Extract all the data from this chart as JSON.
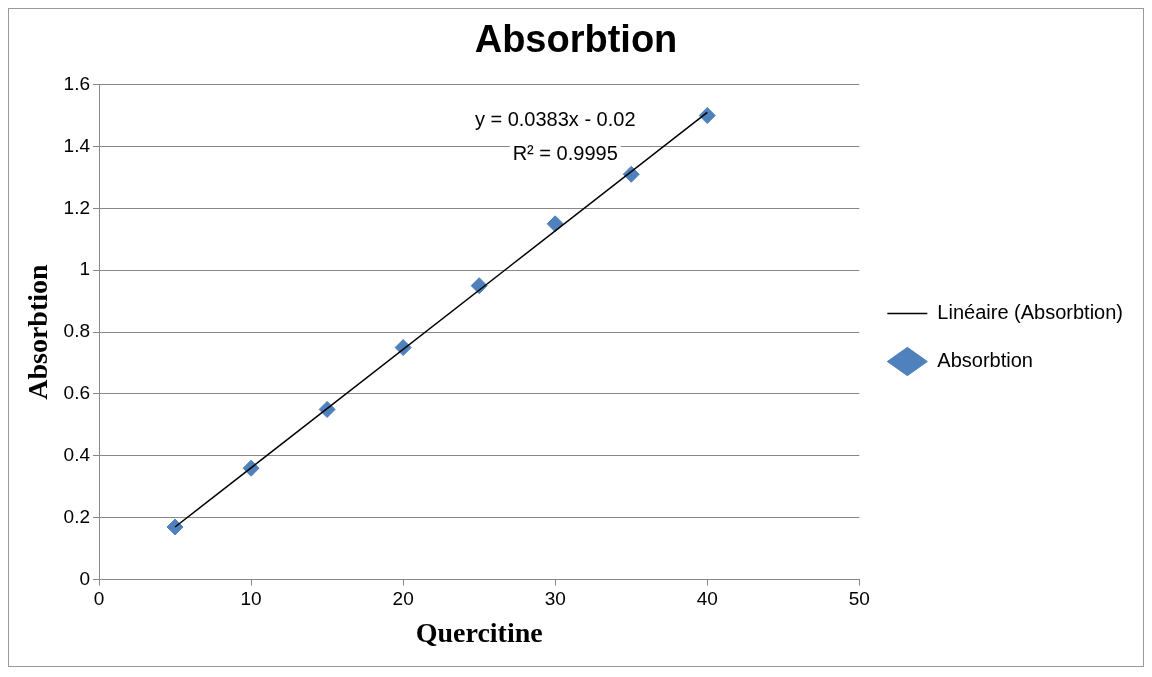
{
  "chart_data": {
    "type": "scatter",
    "title": "Absorbtion",
    "xlabel": "Quercitine",
    "ylabel": "Absorbtion",
    "x": [
      5,
      10,
      15,
      20,
      25,
      30,
      35,
      40
    ],
    "series": [
      {
        "name": "Absorbtion",
        "type": "scatter",
        "color": "#4f81bd",
        "marker": "diamond",
        "values": [
          0.17,
          0.36,
          0.55,
          0.75,
          0.95,
          1.15,
          1.31,
          1.5
        ]
      },
      {
        "name": "Linéaire (Absorbtion)",
        "type": "line",
        "color": "#000000",
        "x": [
          5,
          40
        ],
        "values": [
          0.17,
          1.51
        ],
        "line_style": "solid",
        "marker": "none"
      }
    ],
    "annotations": [
      "y = 0.0383x - 0.02",
      "R² = 0.9995"
    ],
    "xlim": [
      0,
      50
    ],
    "xticks": [
      0,
      10,
      20,
      30,
      40,
      50
    ],
    "ylim": [
      0,
      1.6
    ],
    "yticks": [
      0,
      0.2,
      0.4,
      0.6,
      0.8,
      1,
      1.2,
      1.4,
      1.6
    ],
    "grid": "y",
    "legend": "right"
  }
}
